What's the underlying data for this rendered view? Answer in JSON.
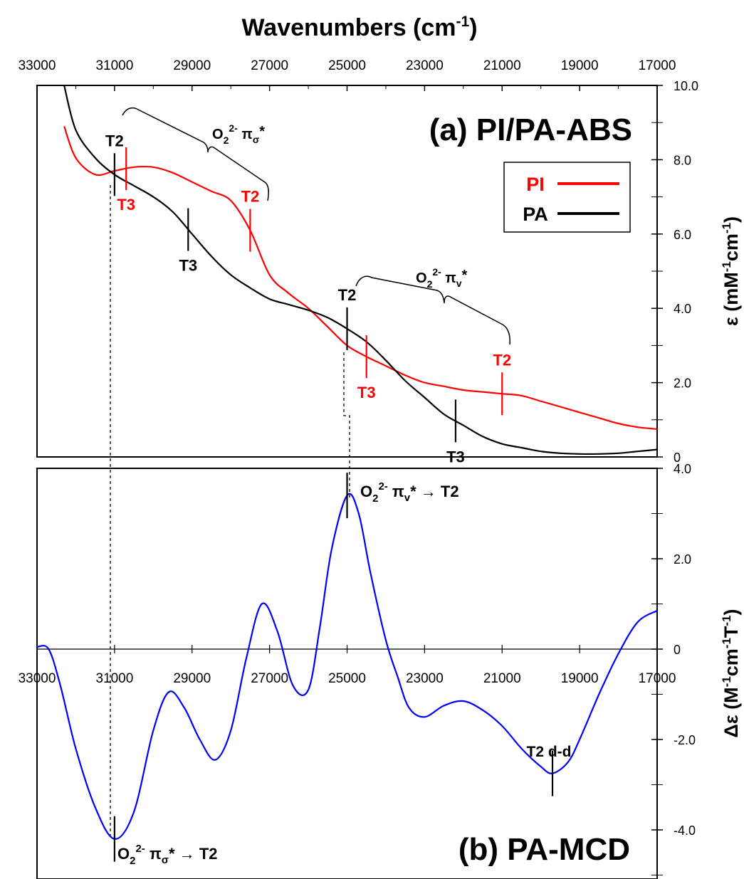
{
  "x_axis": {
    "title": "Wavenumbers (cm",
    "title_sup": "-1",
    "title_close": ")",
    "range": [
      33000,
      17000
    ],
    "ticks": [
      33000,
      31000,
      29000,
      27000,
      25000,
      23000,
      21000,
      19000,
      17000
    ]
  },
  "panel_a": {
    "title": "(a) PI/PA-ABS",
    "ylabel": "ε (mM",
    "ylabel_sup1": "-1",
    "ylabel_mid": "cm",
    "ylabel_sup2": "-1",
    "ylabel_close": ")",
    "ylim": [
      0,
      10
    ],
    "yticks": [
      "0",
      "2.0",
      "4.0",
      "6.0",
      "8.0",
      "10.0"
    ],
    "legend": [
      {
        "label": "PI",
        "color": "#ff0000"
      },
      {
        "label": "PA",
        "color": "#000000"
      }
    ],
    "annotations": {
      "sigma_label": "O",
      "sigma_sub": "2",
      "sigma_sup": "2-",
      "sigma_pi": " π",
      "sigma_pisub": "σ",
      "sigma_star": "*",
      "v_label": "O",
      "v_sub": "2",
      "v_sup": "2-",
      "v_pi": " π",
      "v_pisub": "v",
      "v_star": "*",
      "t2": "T2",
      "t3": "T3"
    }
  },
  "panel_b": {
    "title": "(b) PA-MCD",
    "ylabel": "Δε (M",
    "ylabel_sup1": "-1",
    "ylabel_mid": "cm",
    "ylabel_sup2": "-1",
    "ylabel_mid2": "T",
    "ylabel_sup3": "-1",
    "ylabel_close": ")",
    "ylim": [
      -5.0,
      4.0
    ],
    "yticks": [
      "-4.0",
      "-2.0",
      "0",
      "2.0",
      "4.0"
    ],
    "annotations": {
      "v_arrow": "O",
      "v_arrow_sub": "2",
      "v_arrow_sup": "2-",
      "v_arrow_pi": " π",
      "v_arrow_pisub": "v",
      "v_arrow_rest": "* → T2",
      "sigma_arrow": "O",
      "sigma_arrow_sub": "2",
      "sigma_arrow_sup": "2-",
      "sigma_arrow_pi": " π",
      "sigma_arrow_pisub": "σ",
      "sigma_arrow_rest": "* → T2",
      "dd": "T2 d-d"
    }
  },
  "chart_data": [
    {
      "type": "line",
      "title": "(a) PI/PA-ABS",
      "xlabel": "Wavenumbers (cm-1)",
      "ylabel": "ε (mM-1cm-1)",
      "ylim": [
        0,
        10
      ],
      "xlim": [
        33000,
        17000
      ],
      "series": [
        {
          "name": "PI",
          "color": "#ff0000",
          "x": [
            32300,
            32000,
            31500,
            31000,
            30500,
            30000,
            29500,
            29000,
            28500,
            28000,
            27500,
            27000,
            26500,
            26000,
            25500,
            25000,
            24500,
            24000,
            23500,
            23000,
            22500,
            22000,
            21500,
            21000,
            20500,
            20000,
            19500,
            19000,
            18500,
            18000,
            17500,
            17000
          ],
          "y": [
            8.9,
            8.05,
            7.6,
            7.7,
            7.8,
            7.8,
            7.65,
            7.4,
            7.15,
            6.9,
            6.1,
            4.9,
            4.4,
            4.0,
            3.5,
            3.0,
            2.7,
            2.45,
            2.2,
            2.0,
            1.9,
            1.8,
            1.75,
            1.7,
            1.65,
            1.5,
            1.35,
            1.2,
            1.05,
            0.9,
            0.8,
            0.75
          ]
        },
        {
          "name": "PA",
          "color": "#000000",
          "x": [
            32300,
            32000,
            31500,
            31000,
            30500,
            30000,
            29500,
            29000,
            28500,
            28000,
            27500,
            27000,
            26500,
            26000,
            25500,
            25000,
            24500,
            24000,
            23500,
            23000,
            22500,
            22000,
            21500,
            21000,
            20500,
            20000,
            19500,
            19000,
            18500,
            18000,
            17500,
            17000
          ],
          "y": [
            10.0,
            8.8,
            8.05,
            7.6,
            7.3,
            7.0,
            6.6,
            6.0,
            5.4,
            4.9,
            4.55,
            4.25,
            4.1,
            3.95,
            3.75,
            3.45,
            3.1,
            2.6,
            2.05,
            1.6,
            1.15,
            0.85,
            0.55,
            0.35,
            0.25,
            0.15,
            0.1,
            0.08,
            0.08,
            0.1,
            0.15,
            0.2
          ]
        }
      ],
      "markers": [
        {
          "label": "T2",
          "series": "PA",
          "x": 31000
        },
        {
          "label": "T3",
          "series": "PI",
          "x": 30700
        },
        {
          "label": "T3",
          "series": "PA",
          "x": 29100
        },
        {
          "label": "T2",
          "series": "PI",
          "x": 27500
        },
        {
          "label": "T2",
          "series": "PA",
          "x": 25000
        },
        {
          "label": "T3",
          "series": "PI",
          "x": 24500
        },
        {
          "label": "T3",
          "series": "PA",
          "x": 22200
        },
        {
          "label": "T2",
          "series": "PI",
          "x": 21000
        }
      ]
    },
    {
      "type": "line",
      "title": "(b) PA-MCD",
      "xlabel": "Wavenumbers (cm-1)",
      "ylabel": "Δε (M-1cm-1T-1)",
      "ylim": [
        -5.0,
        4.0
      ],
      "xlim": [
        33000,
        17000
      ],
      "series": [
        {
          "name": "PA-MCD",
          "color": "#0000ff",
          "x": [
            33000,
            32700,
            32400,
            32000,
            31500,
            31000,
            30500,
            30000,
            29600,
            29200,
            28800,
            28400,
            28000,
            27600,
            27200,
            26800,
            26400,
            26000,
            25700,
            25400,
            25000,
            24700,
            24400,
            24000,
            23700,
            23400,
            23000,
            22500,
            22000,
            21500,
            21000,
            20500,
            20000,
            19700,
            19300,
            19000,
            18500,
            18000,
            17500,
            17000
          ],
          "y": [
            0.05,
            0.0,
            -0.8,
            -2.2,
            -3.5,
            -4.2,
            -3.6,
            -1.8,
            -0.95,
            -1.3,
            -2.0,
            -2.45,
            -1.8,
            -0.2,
            1.0,
            0.4,
            -0.8,
            -0.9,
            0.5,
            2.2,
            3.4,
            3.0,
            1.7,
            0.2,
            -0.6,
            -1.3,
            -1.5,
            -1.25,
            -1.15,
            -1.35,
            -1.7,
            -2.2,
            -2.6,
            -2.75,
            -2.5,
            -2.0,
            -1.0,
            -0.1,
            0.6,
            0.85
          ]
        }
      ],
      "markers": [
        {
          "label": "O22- πv* → T2",
          "x": 25000
        },
        {
          "label": "O22- πσ* → T2",
          "x": 31000
        },
        {
          "label": "T2 d-d",
          "x": 19700
        }
      ]
    }
  ]
}
